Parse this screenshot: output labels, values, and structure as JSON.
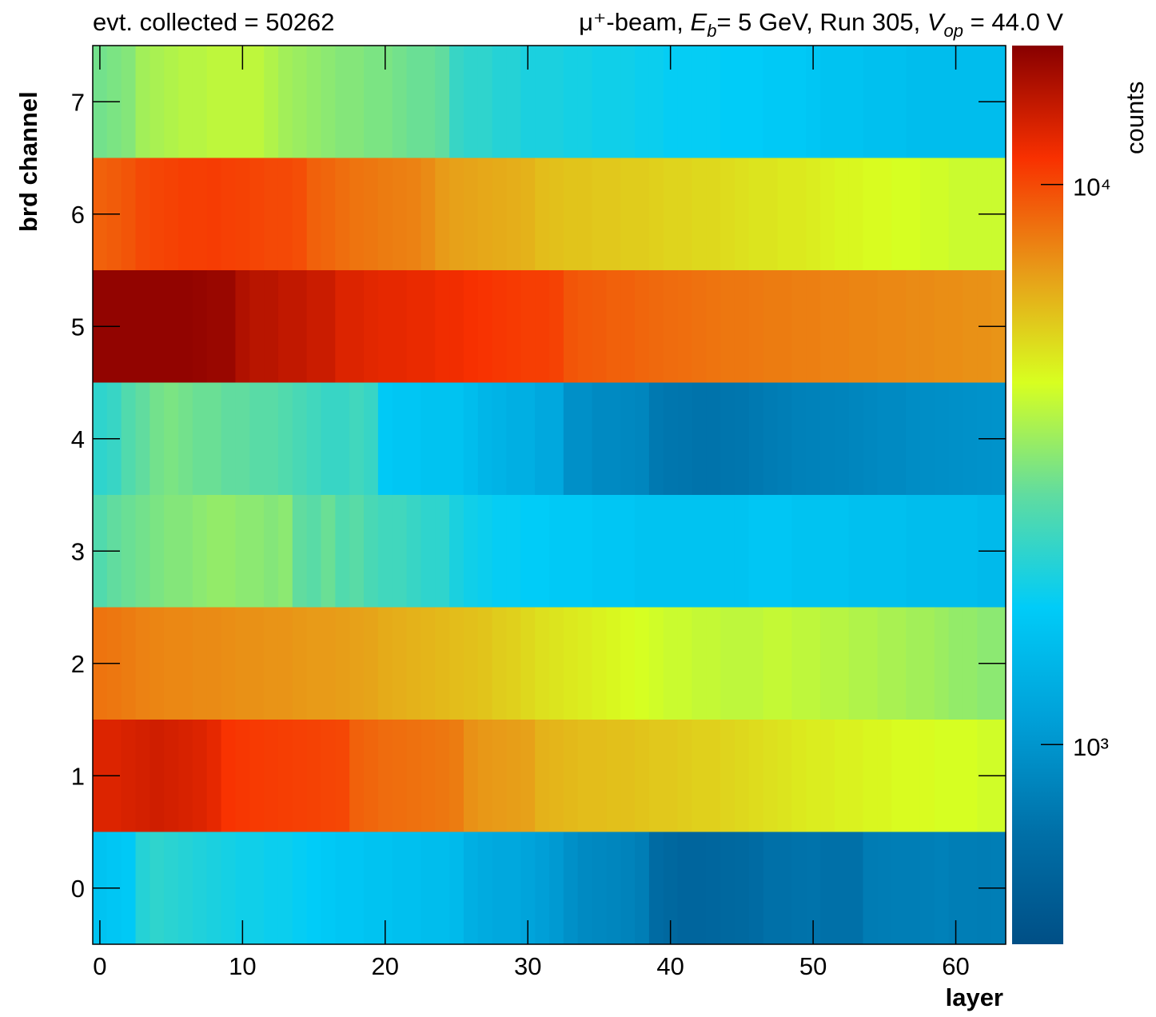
{
  "chart_data": {
    "type": "heatmap",
    "title_left": "evt. collected = 50262",
    "title_right": [
      "μ⁺-beam, ",
      "E",
      "b",
      "= 5 GeV, Run 305, ",
      "V",
      "op",
      " = 44.0 V"
    ],
    "xlabel": "layer",
    "ylabel": "brd channel",
    "zlabel": "counts",
    "xlim": [
      -0.5,
      63.5
    ],
    "ylim": [
      -0.5,
      7.5
    ],
    "xticks": [
      0,
      10,
      20,
      30,
      40,
      50,
      60
    ],
    "yticks": [
      0,
      1,
      2,
      3,
      4,
      5,
      6,
      7
    ],
    "zlim": [
      440,
      17700
    ],
    "zscale": "log",
    "zticks": [
      {
        "value": 1000,
        "label": "10³"
      },
      {
        "value": 10000,
        "label": "10⁴"
      }
    ],
    "colormap": [
      "#004f86",
      "#0070a8",
      "#00a0d8",
      "#00ccf8",
      "#60dca0",
      "#d8ff20",
      "#e89a18",
      "#f83000",
      "#880000"
    ],
    "z": [
      [
        1600,
        1650,
        1700,
        2100,
        2200,
        2150,
        2100,
        2050,
        2000,
        1950,
        1900,
        1900,
        1850,
        1850,
        1800,
        1750,
        1700,
        1650,
        1650,
        1600,
        1600,
        1550,
        1550,
        1500,
        1500,
        1450,
        1300,
        1250,
        1200,
        1200,
        1150,
        1100,
        1050,
        950,
        900,
        880,
        860,
        840,
        800,
        650,
        620,
        600,
        600,
        610,
        620,
        630,
        650,
        700,
        700,
        710,
        720,
        700,
        700,
        700,
        780,
        790,
        800,
        800,
        810,
        820,
        800,
        800,
        790,
        800
      ],
      [
        12500,
        12500,
        12800,
        13000,
        13200,
        13000,
        12800,
        12500,
        12000,
        11000,
        10800,
        10700,
        10600,
        10500,
        10400,
        10300,
        10200,
        10100,
        9000,
        8800,
        8600,
        8500,
        8400,
        8300,
        8200,
        8000,
        7300,
        7100,
        7000,
        6900,
        6800,
        6300,
        6200,
        6100,
        6000,
        6000,
        5900,
        5900,
        5800,
        5700,
        5700,
        5600,
        5500,
        5500,
        5400,
        5300,
        5200,
        5100,
        5000,
        4900,
        4800,
        4800,
        4700,
        4700,
        4600,
        4600,
        4500,
        4500,
        4500,
        4400,
        4400,
        4400,
        4300,
        4300
      ],
      [
        8300,
        8200,
        8000,
        7800,
        7700,
        7600,
        7600,
        7500,
        7500,
        7400,
        7300,
        7300,
        7200,
        7200,
        7100,
        7000,
        7000,
        6900,
        6800,
        6700,
        6500,
        6400,
        6300,
        6200,
        6100,
        6000,
        5900,
        5800,
        5600,
        5500,
        5300,
        5100,
        5000,
        4900,
        4800,
        4700,
        4600,
        4500,
        4400,
        4300,
        4200,
        4200,
        4100,
        4100,
        4000,
        4000,
        4000,
        4100,
        4100,
        4000,
        4000,
        3900,
        3900,
        3800,
        3800,
        3700,
        3700,
        3600,
        3600,
        3500,
        3400,
        3400,
        3300,
        3300
      ],
      [
        2600,
        2800,
        2900,
        3000,
        3100,
        3200,
        3200,
        3300,
        3400,
        3400,
        3300,
        3300,
        3200,
        3300,
        2800,
        2700,
        2900,
        2600,
        2700,
        2500,
        2400,
        2400,
        2300,
        2200,
        2200,
        2000,
        1900,
        1850,
        1800,
        1800,
        1750,
        1750,
        1700,
        1700,
        1700,
        1650,
        1650,
        1650,
        1600,
        1600,
        1600,
        1600,
        1600,
        1600,
        1600,
        1600,
        1650,
        1650,
        1650,
        1600,
        1600,
        1600,
        1600,
        1550,
        1550,
        1550,
        1550,
        1500,
        1500,
        1500,
        1500,
        1500,
        1450,
        1450
      ],
      [
        2200,
        2300,
        2600,
        2800,
        3000,
        3100,
        3000,
        2900,
        2900,
        2800,
        2800,
        2700,
        2700,
        2600,
        2500,
        2400,
        2300,
        2300,
        2400,
        2300,
        1700,
        1650,
        1650,
        1600,
        1600,
        1600,
        1500,
        1400,
        1350,
        1300,
        1300,
        1200,
        1200,
        950,
        950,
        900,
        900,
        880,
        860,
        760,
        740,
        730,
        720,
        720,
        730,
        740,
        760,
        780,
        800,
        820,
        830,
        840,
        850,
        860,
        880,
        900,
        900,
        920,
        930,
        940,
        950,
        960,
        970,
        980
      ],
      [
        17000,
        17000,
        17000,
        17000,
        17000,
        17000,
        17000,
        16800,
        16500,
        16500,
        15000,
        14500,
        14500,
        14000,
        14000,
        13500,
        13500,
        12500,
        12500,
        12200,
        12000,
        12000,
        11800,
        11800,
        11500,
        11500,
        11200,
        11000,
        10800,
        10700,
        10500,
        10500,
        10300,
        9500,
        9300,
        9200,
        9000,
        9000,
        8800,
        8700,
        8600,
        8500,
        8400,
        8300,
        8200,
        8200,
        8100,
        8000,
        8000,
        7900,
        7900,
        7800,
        7800,
        7700,
        7700,
        7600,
        7600,
        7500,
        7500,
        7400,
        7400,
        7300,
        7300,
        7200
      ],
      [
        9000,
        9200,
        9500,
        10000,
        10200,
        10300,
        10500,
        10500,
        10600,
        10400,
        10300,
        10200,
        10000,
        10000,
        9800,
        9000,
        8800,
        8500,
        8300,
        8200,
        8000,
        7900,
        7800,
        7500,
        7000,
        6800,
        6700,
        6600,
        6500,
        6400,
        6300,
        6000,
        5900,
        5800,
        5800,
        5700,
        5700,
        5600,
        5600,
        5500,
        5400,
        5400,
        5300,
        5300,
        5200,
        5100,
        5000,
        5000,
        4900,
        4900,
        4800,
        4700,
        4600,
        4600,
        4500,
        4500,
        4400,
        4400,
        4300,
        4300,
        4200,
        4200,
        4200,
        4200
      ],
      [
        3000,
        3100,
        3200,
        3600,
        3700,
        3800,
        3900,
        3900,
        4000,
        4000,
        4000,
        4000,
        3800,
        3600,
        3500,
        3400,
        3300,
        3200,
        3200,
        3100,
        3100,
        3000,
        2900,
        2900,
        2800,
        2300,
        2200,
        2200,
        2100,
        2100,
        2000,
        2000,
        2000,
        1950,
        1950,
        1900,
        1900,
        1900,
        1850,
        1850,
        1800,
        1800,
        1800,
        1800,
        1750,
        1750,
        1750,
        1700,
        1700,
        1700,
        1650,
        1600,
        1600,
        1600,
        1550,
        1550,
        1550,
        1500,
        1500,
        1500,
        1500,
        1500,
        1500,
        1500
      ]
    ]
  }
}
